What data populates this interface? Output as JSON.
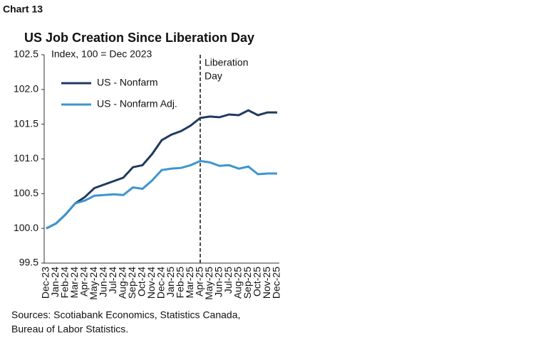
{
  "chart_data": {
    "type": "line",
    "label": "Chart 13",
    "title": "US Job Creation Since Liberation Day",
    "subtitle": "Index, 100 = Dec 2023",
    "categories": [
      "Dec-23",
      "Jan-24",
      "Feb-24",
      "Mar-24",
      "Apr-24",
      "May-24",
      "Jun-24",
      "Jul-24",
      "Aug-24",
      "Sep-24",
      "Oct-24",
      "Nov-24",
      "Dec-24",
      "Jan-25",
      "Feb-25",
      "Mar-25",
      "Apr-25",
      "May-25",
      "Jun-25",
      "Jul-25",
      "Aug-25",
      "Sep-25",
      "Oct-25",
      "Nov-25",
      "Dec-25"
    ],
    "series": [
      {
        "name": "US - Nonfarm",
        "color": "#1f3a5f",
        "values": [
          100.0,
          100.07,
          100.2,
          100.36,
          100.45,
          100.58,
          100.63,
          100.68,
          100.73,
          100.88,
          100.91,
          101.07,
          101.27,
          101.35,
          101.4,
          101.48,
          101.59,
          101.61,
          101.6,
          101.64,
          101.63,
          101.7,
          101.63,
          101.67,
          101.67
        ]
      },
      {
        "name": "US - Nonfarm Adj.",
        "color": "#3d95cf",
        "values": [
          100.0,
          100.07,
          100.2,
          100.36,
          100.4,
          100.47,
          100.48,
          100.49,
          100.48,
          100.59,
          100.57,
          100.69,
          100.84,
          100.86,
          100.87,
          100.91,
          100.97,
          100.95,
          100.9,
          100.91,
          100.86,
          100.89,
          100.78,
          100.79,
          100.79
        ]
      }
    ],
    "ylim": [
      99.5,
      102.5
    ],
    "yticks": [
      99.5,
      {
        "value": 100,
        "label": "100.0"
      },
      100.5,
      {
        "value": 101,
        "label": "101.0"
      },
      101.5,
      {
        "value": 102,
        "label": "102.0"
      },
      102.5
    ],
    "annotation": {
      "x": "Apr-25",
      "text": [
        "Liberation",
        "Day"
      ]
    },
    "source": [
      "Sources: Scotiabank Economics, Statistics Canada,",
      "Bureau of Labor Statistics."
    ]
  }
}
